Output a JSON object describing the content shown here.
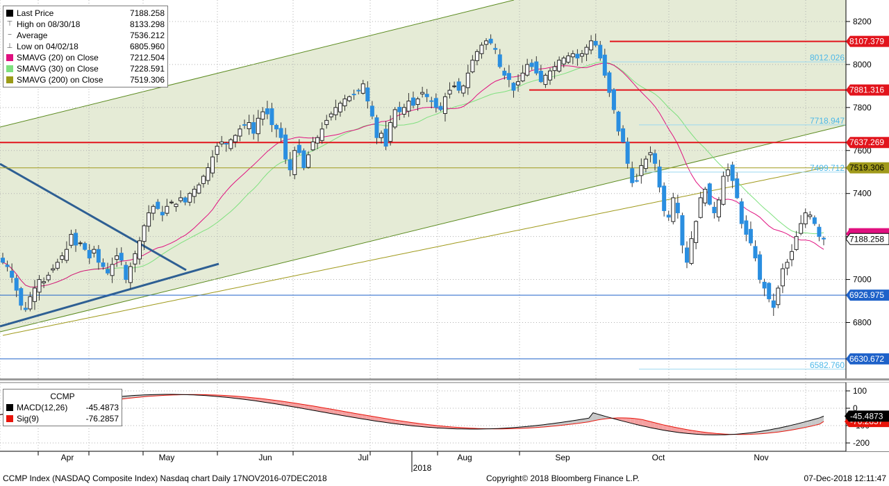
{
  "legend": {
    "items": [
      {
        "label": "Last Price",
        "value": "7188.258",
        "color": "#000000",
        "marker": "square"
      },
      {
        "label": "High on 08/30/18",
        "value": "8133.298",
        "color": "#555555",
        "marker": "high"
      },
      {
        "label": "Average",
        "value": "7536.212",
        "color": "#555555",
        "marker": "avg"
      },
      {
        "label": "Low on 04/02/18",
        "value": "6805.960",
        "color": "#555555",
        "marker": "low"
      },
      {
        "label": "SMAVG (20)  on Close",
        "value": "7212.504",
        "color": "#e0107f",
        "marker": "square"
      },
      {
        "label": "SMAVG (30)  on Close",
        "value": "7228.591",
        "color": "#7ee07e",
        "marker": "square"
      },
      {
        "label": "SMAVG (200)  on Close",
        "value": "7519.306",
        "color": "#9b9b17",
        "marker": "square"
      }
    ]
  },
  "macd_legend": {
    "title": "CCMP",
    "items": [
      {
        "label": "MACD(12,26)",
        "value": "-45.4873",
        "color": "#000000"
      },
      {
        "label": "Sig(9)",
        "value": "-76.2857",
        "color": "#e8140a"
      }
    ]
  },
  "footer": {
    "left": "CCMP Index (NASDAQ Composite Index) Nasdaq chart  Daily 17NOV2016-07DEC2018",
    "center": "Copyright© 2018 Bloomberg Finance L.P.",
    "right": "07-Dec-2018  12:11:47"
  },
  "chart_data": [
    {
      "type": "candlestick",
      "ylim": [
        6540,
        8300
      ],
      "yticks": [
        6800,
        7000,
        7200,
        7400,
        7600,
        7800,
        8000,
        8200
      ],
      "x_labels": [
        "Apr",
        "May",
        "Jun",
        "Jul",
        "Aug",
        "Sep",
        "Oct",
        "Nov"
      ],
      "year_label": "2018",
      "horizontal_levels": [
        {
          "value": 8107.379,
          "label": "8107.379",
          "color": "#e2141c",
          "style": "tag"
        },
        {
          "value": 8012.026,
          "label": "8012.026",
          "color": "#4cb8e8",
          "style": "text"
        },
        {
          "value": 7881.316,
          "label": "7881.316",
          "color": "#e2141c",
          "style": "tag"
        },
        {
          "value": 7718.947,
          "label": "7718.947",
          "color": "#4cb8e8",
          "style": "text"
        },
        {
          "value": 7637.269,
          "label": "7637.269",
          "color": "#e2141c",
          "style": "tag"
        },
        {
          "value": 7519.306,
          "label": "7519.306",
          "color": "#a09a1c",
          "style": "tag"
        },
        {
          "value": 7499.712,
          "label": "7499.712",
          "color": "#4cb8e8",
          "style": "text"
        },
        {
          "value": 7212.504,
          "label": "7212.504",
          "color": "#e0107f",
          "style": "tag-partial"
        },
        {
          "value": 7188.258,
          "label": "7188.258",
          "color": "#000000",
          "style": "tag"
        },
        {
          "value": 6926.975,
          "label": "6926.975",
          "color": "#1f62c9",
          "style": "tag"
        },
        {
          "value": 6630.672,
          "label": "6630.672",
          "color": "#1f62c9",
          "style": "tag"
        },
        {
          "value": 6582.76,
          "label": "6582.760",
          "color": "#4cb8e8",
          "style": "text"
        }
      ],
      "series": [
        {
          "name": "Last Price",
          "closes": [
            7080,
            7060,
            7010,
            6950,
            6880,
            6860,
            6920,
            6960,
            7000,
            6990,
            7020,
            7050,
            7080,
            7110,
            7140,
            7210,
            7160,
            7170,
            7140,
            7100,
            7140,
            7080,
            7060,
            7030,
            7070,
            7110,
            7090,
            7000,
            7060,
            7120,
            7180,
            7250,
            7310,
            7340,
            7330,
            7300,
            7340,
            7360,
            7350,
            7380,
            7360,
            7400,
            7420,
            7440,
            7480,
            7520,
            7570,
            7620,
            7640,
            7630,
            7650,
            7670,
            7700,
            7720,
            7730,
            7680,
            7750,
            7780,
            7770,
            7720,
            7700,
            7660,
            7560,
            7510,
            7600,
            7590,
            7520,
            7580,
            7640,
            7660,
            7700,
            7740,
            7770,
            7800,
            7820,
            7840,
            7850,
            7860,
            7880,
            7910,
            7830,
            7760,
            7660,
            7680,
            7620,
            7730,
            7790,
            7780,
            7800,
            7830,
            7810,
            7840,
            7870,
            7850,
            7830,
            7800,
            7790,
            7850,
            7880,
            7900,
            7880,
            7900,
            7960,
            8020,
            8060,
            8090,
            8110,
            8100,
            8070,
            7990,
            7950,
            7930,
            7880,
            7920,
            7960,
            8000,
            7990,
            7960,
            7920,
            7950,
            7970,
            7990,
            8020,
            8030,
            8040,
            8050,
            8030,
            8050,
            8080,
            8110,
            8090,
            8030,
            7950,
            7870,
            7790,
            7690,
            7640,
            7540,
            7450,
            7460,
            7530,
            7560,
            7590,
            7540,
            7430,
            7320,
            7290,
            7380,
            7310,
            7160,
            7080,
            7190,
            7270,
            7380,
            7420,
            7350,
            7310,
            7370,
            7480,
            7510,
            7460,
            7380,
            7260,
            7210,
            7170,
            7100,
            7000,
            6960,
            6910,
            6870,
            6960,
            7050,
            7080,
            7130,
            7200,
            7260,
            7310,
            7300,
            7260,
            7200,
            7188.258
          ]
        },
        {
          "name": "SMAVG (20)  on Close",
          "values": [
            7212.504
          ]
        },
        {
          "name": "SMAVG (30)  on Close",
          "values": [
            7228.591
          ]
        },
        {
          "name": "SMAVG (200)  on Close",
          "values": [
            7519.306
          ]
        }
      ]
    },
    {
      "type": "line",
      "ylim": [
        -240,
        140
      ],
      "yticks": [
        100,
        0,
        -100,
        -200
      ],
      "series": [
        {
          "name": "MACD(12,26)",
          "last": -45.4873
        },
        {
          "name": "Sig(9)",
          "last": -76.2857
        }
      ]
    }
  ]
}
